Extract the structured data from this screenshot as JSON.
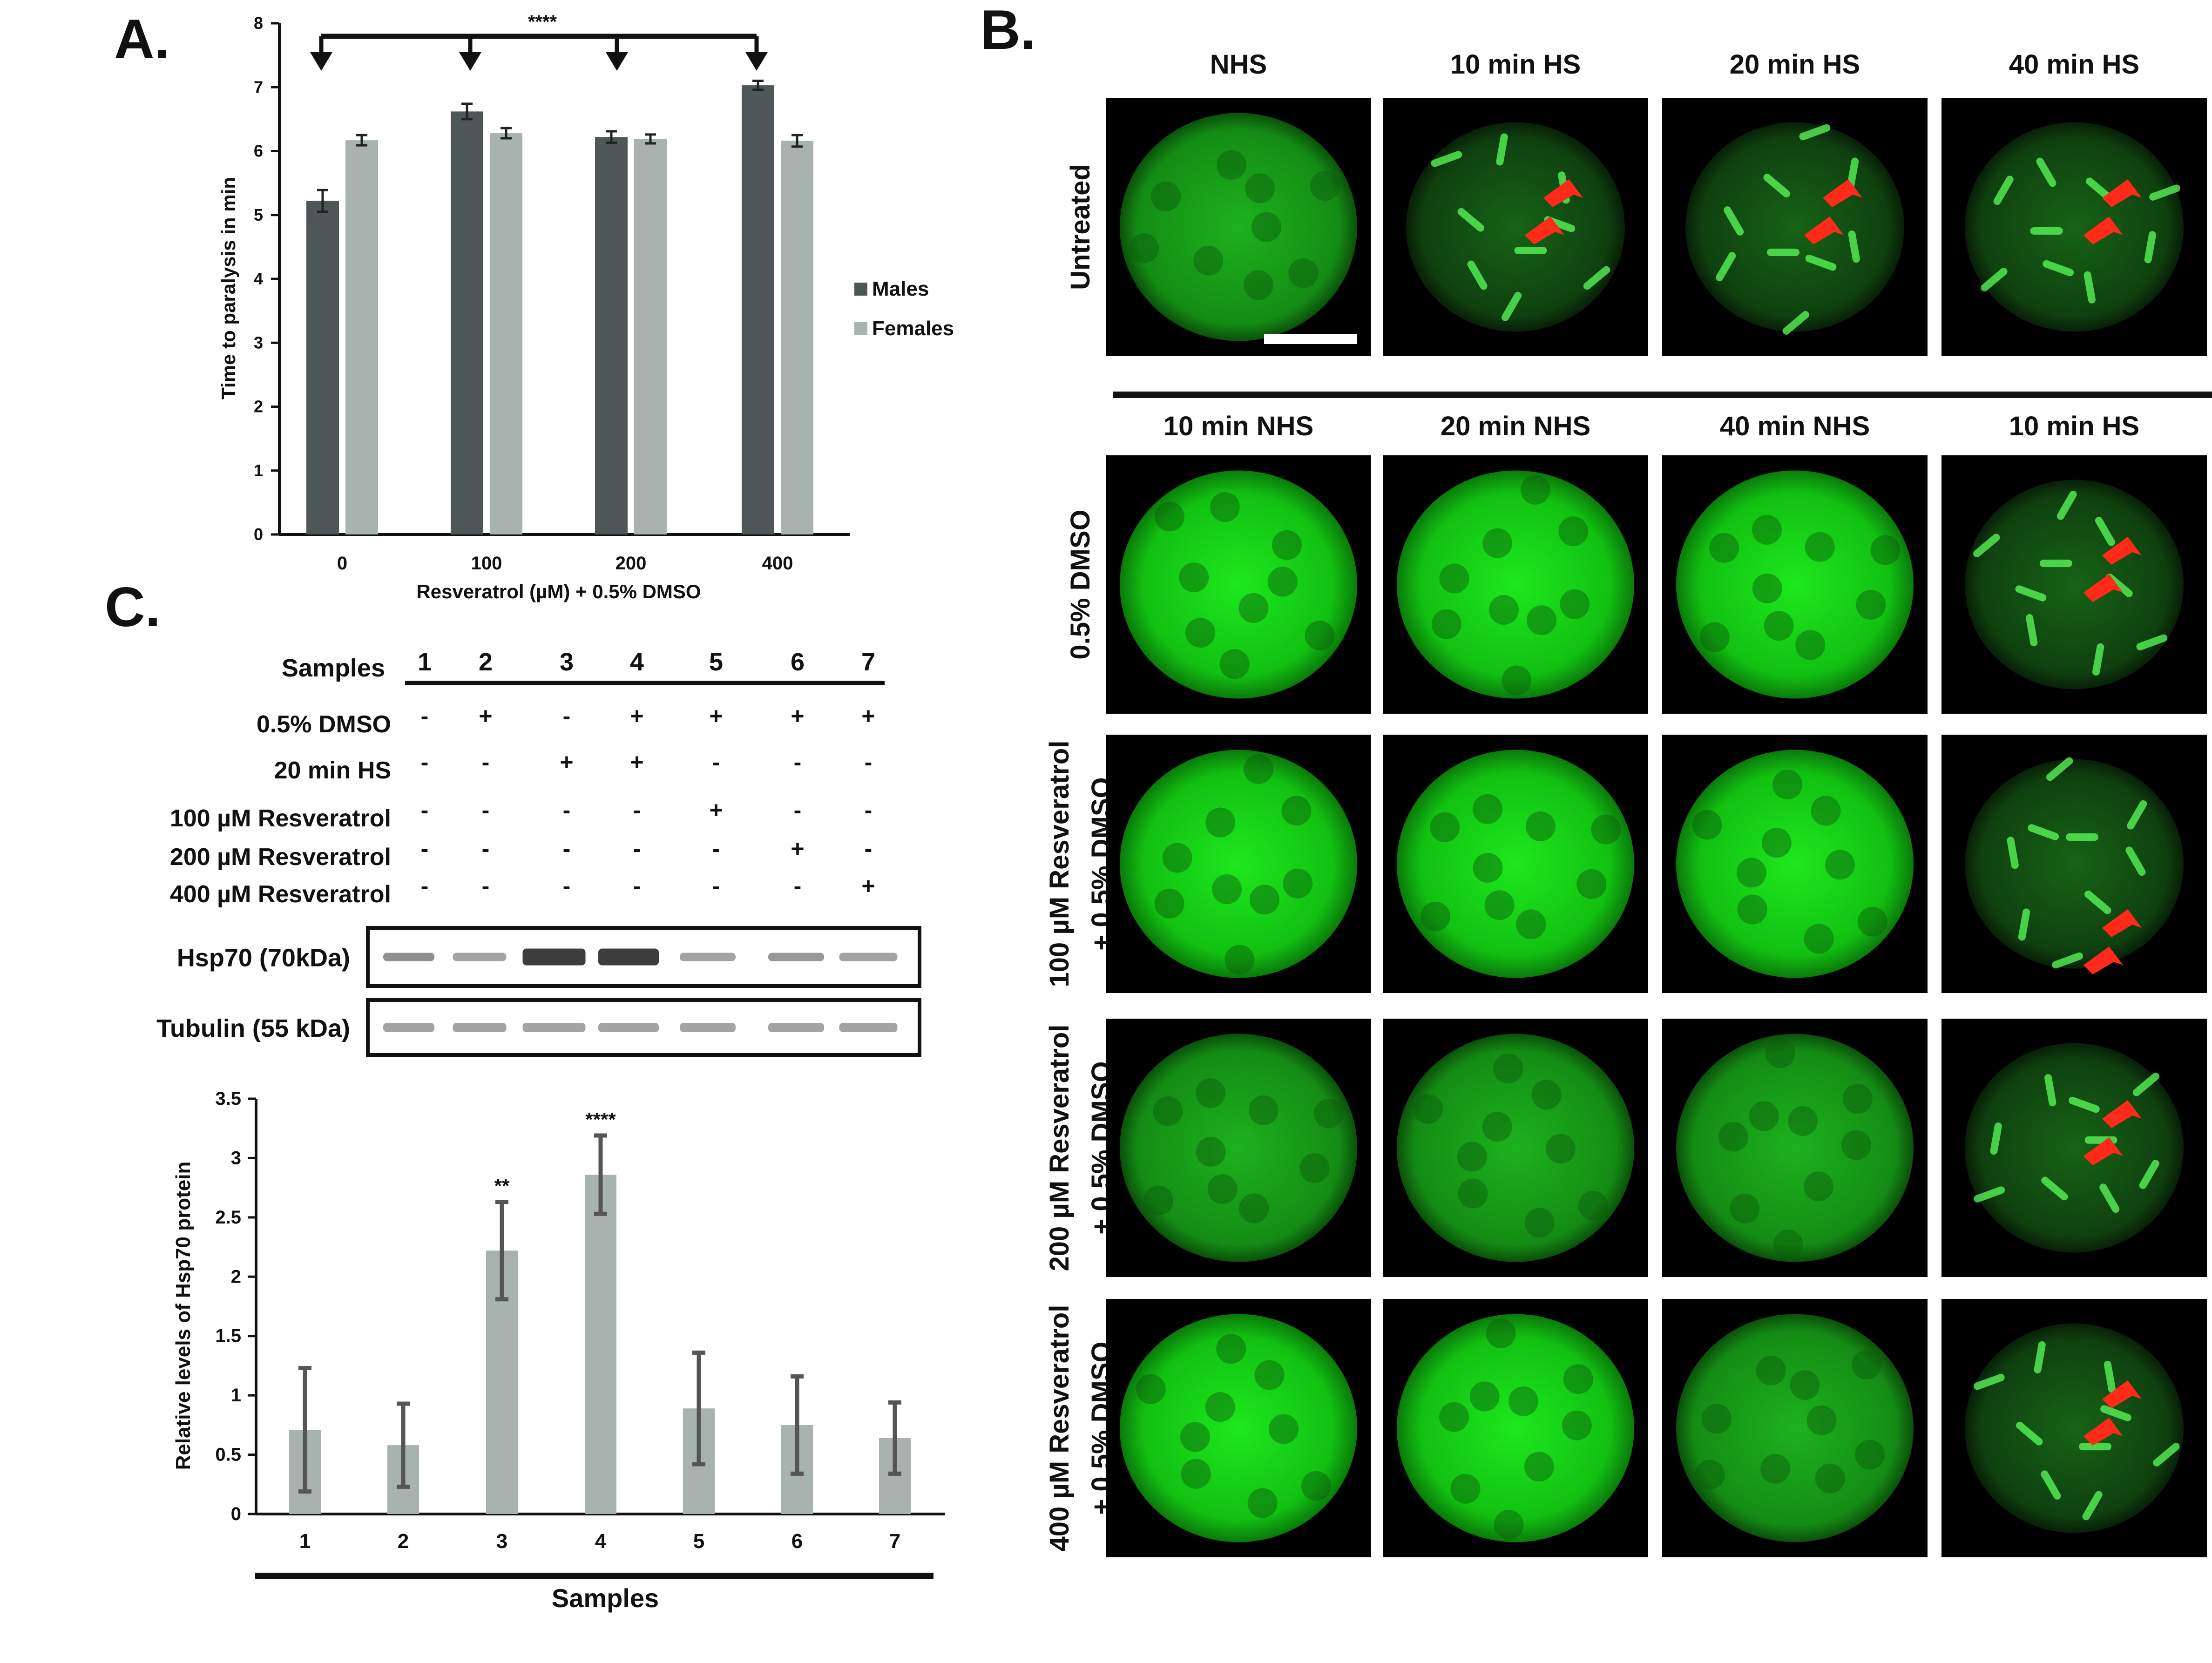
{
  "panel_labels": {
    "a": "A.",
    "b": "B.",
    "c": "C."
  },
  "colors": {
    "males": "#4d5757",
    "females": "#a8b3b0",
    "hsp_bar": "#a8b3b0",
    "error": "#222222",
    "arrow_red": "#ff2a1a"
  },
  "panel_a": {
    "chart_data": {
      "type": "bar",
      "xlabel": "Resveratrol (µM) + 0.5% DMSO",
      "ylabel": "Time to paralysis in min",
      "categories": [
        "0",
        "100",
        "200",
        "400"
      ],
      "ylim": [
        0,
        8
      ],
      "yticks": [
        "0",
        "1",
        "2",
        "3",
        "4",
        "5",
        "6",
        "7",
        "8"
      ],
      "series": [
        {
          "name": "Males",
          "values": [
            5.22,
            6.62,
            6.22,
            7.03
          ],
          "errors": [
            0.17,
            0.12,
            0.09,
            0.07
          ]
        },
        {
          "name": "Females",
          "values": [
            6.17,
            6.28,
            6.19,
            6.16
          ],
          "errors": [
            0.08,
            0.08,
            0.07,
            0.09
          ]
        }
      ],
      "significance": "****",
      "legend_position": "right"
    }
  },
  "panel_b": {
    "top_headers": [
      "NHS",
      "10 min HS",
      "20 min HS",
      "40 min HS"
    ],
    "bottom_headers": [
      "10 min NHS",
      "20 min NHS",
      "40 min NHS",
      "10 min HS"
    ],
    "rows": [
      {
        "label_lines": [
          "Untreated"
        ]
      },
      {
        "label_lines": [
          "0.5% DMSO"
        ]
      },
      {
        "label_lines": [
          "100 µM Resveratrol",
          "+ 0.5% DMSO"
        ]
      },
      {
        "label_lines": [
          "200 µM Resveratrol",
          "+ 0.5% DMSO"
        ]
      },
      {
        "label_lines": [
          "400 µM Resveratrol",
          "+ 0.5% DMSO"
        ]
      }
    ]
  },
  "panel_c": {
    "table": {
      "samples_label": "Samples",
      "sample_numbers": [
        "1",
        "2",
        "3",
        "4",
        "5",
        "6",
        "7"
      ],
      "rows": [
        {
          "label": "0.5% DMSO",
          "marks": [
            "-",
            "+",
            "-",
            "+",
            "+",
            "+",
            "+"
          ]
        },
        {
          "label": "20 min HS",
          "marks": [
            "-",
            "-",
            "+",
            "+",
            "-",
            "-",
            "-"
          ]
        },
        {
          "label": "100 µM Resveratrol",
          "marks": [
            "-",
            "-",
            "-",
            "-",
            "+",
            "-",
            "-"
          ]
        },
        {
          "label": "200 µM Resveratrol",
          "marks": [
            "-",
            "-",
            "-",
            "-",
            "-",
            "+",
            "-"
          ]
        },
        {
          "label": "400 µM Resveratrol",
          "marks": [
            "-",
            "-",
            "-",
            "-",
            "-",
            "-",
            "+"
          ]
        }
      ]
    },
    "blots": [
      {
        "name": "Hsp70",
        "size": "(70kDa)"
      },
      {
        "name": "Tubulin",
        "size": "(55 kDa)"
      }
    ],
    "chart_data": {
      "type": "bar",
      "xlabel": "Samples",
      "ylabel": "Relative levels of Hsp70 protein",
      "categories": [
        "1",
        "2",
        "3",
        "4",
        "5",
        "6",
        "7"
      ],
      "ylim": [
        0,
        3.5
      ],
      "yticks": [
        "0",
        "0.5",
        "1",
        "1.5",
        "2",
        "2.5",
        "3",
        "3.5"
      ],
      "values": [
        0.71,
        0.58,
        2.22,
        2.86,
        0.89,
        0.75,
        0.64
      ],
      "errors": [
        0.52,
        0.35,
        0.41,
        0.33,
        0.47,
        0.41,
        0.3
      ],
      "annotations": [
        "",
        "",
        "**",
        "****",
        "",
        "",
        ""
      ]
    }
  }
}
